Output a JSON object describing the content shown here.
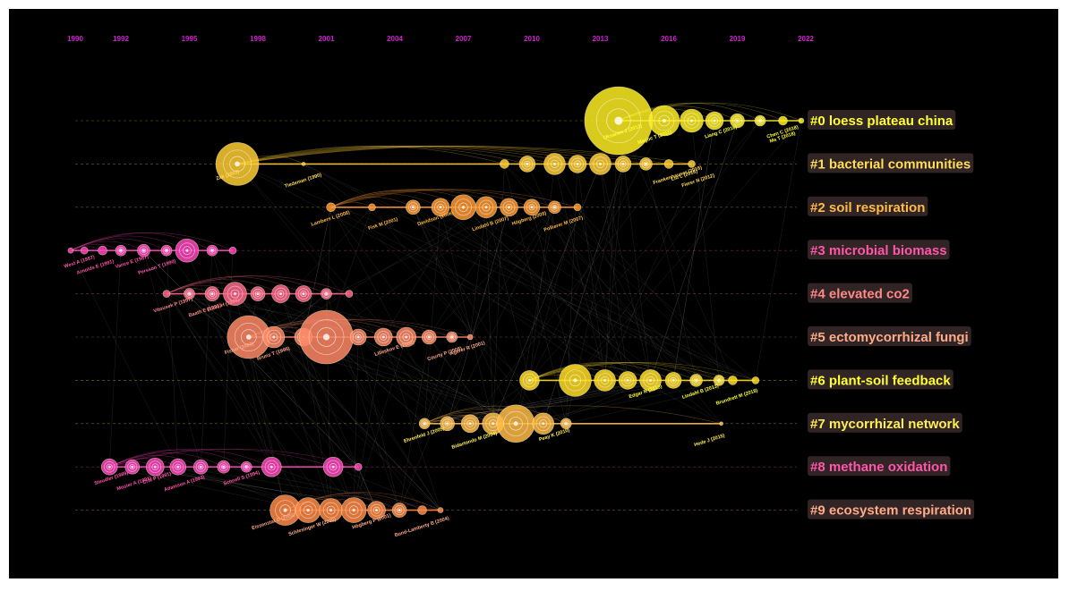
{
  "timeline": {
    "years": [
      {
        "label": "1990",
        "year": 1990
      },
      {
        "label": "1992",
        "year": 1992
      },
      {
        "label": "1995",
        "year": 1995
      },
      {
        "label": "1998",
        "year": 1998
      },
      {
        "label": "2001",
        "year": 2001
      },
      {
        "label": "2004",
        "year": 2004
      },
      {
        "label": "2007",
        "year": 2007
      },
      {
        "label": "2010",
        "year": 2010
      },
      {
        "label": "2013",
        "year": 2013
      },
      {
        "label": "2016",
        "year": 2016
      },
      {
        "label": "2019",
        "year": 2019
      },
      {
        "label": "2022",
        "year": 2022
      }
    ]
  },
  "clusters": [
    {
      "label": "#0 loess plateau china",
      "color": "#ffff33",
      "node_color": "#ffee22",
      "nodes": [
        {
          "year": 2013.8,
          "r": 38,
          "label": ""
        },
        {
          "year": 2015.8,
          "r": 17,
          "label": ""
        },
        {
          "year": 2017,
          "r": 13,
          "label": ""
        },
        {
          "year": 2018,
          "r": 10,
          "label": ""
        },
        {
          "year": 2019,
          "r": 8,
          "label": ""
        },
        {
          "year": 2020,
          "r": 6,
          "label": ""
        },
        {
          "year": 2021,
          "r": 5,
          "label": ""
        },
        {
          "year": 2021.8,
          "r": 3,
          "label": ""
        }
      ],
      "labels": [
        {
          "year": 2021,
          "text": "Chen C (2018)"
        },
        {
          "year": 2021,
          "text": "Ma T (2018)"
        },
        {
          "year": 2018.3,
          "text": "Liang C (2016)"
        },
        {
          "year": 2015.4,
          "text": "Magoc T (2011)"
        },
        {
          "year": 2014,
          "text": "Oksanen J (2013)"
        }
      ]
    },
    {
      "label": "#1 bacterial communities",
      "color": "#ffdd55",
      "node_color": "#ffcc33",
      "nodes": [
        {
          "year": 1997.1,
          "r": 24,
          "label": ""
        },
        {
          "year": 2000,
          "r": 2,
          "label": ""
        },
        {
          "year": 2008.8,
          "r": 5,
          "label": ""
        },
        {
          "year": 2009.8,
          "r": 9,
          "label": ""
        },
        {
          "year": 2011,
          "r": 12,
          "label": ""
        },
        {
          "year": 2012,
          "r": 10,
          "label": ""
        },
        {
          "year": 2013,
          "r": 12,
          "label": ""
        },
        {
          "year": 2014,
          "r": 9,
          "label": ""
        },
        {
          "year": 2015,
          "r": 7,
          "label": ""
        },
        {
          "year": 2016,
          "r": 5,
          "label": ""
        },
        {
          "year": 2017,
          "r": 4,
          "label": ""
        }
      ],
      "labels": [
        {
          "year": 1996.7,
          "text": "Zak (2003)"
        },
        {
          "year": 2000,
          "text": "Tiedeman (1990)"
        },
        {
          "year": 2016.7,
          "text": "Liu L (2016)"
        },
        {
          "year": 2017.3,
          "text": "Fierer N (2012)"
        },
        {
          "year": 2016.4,
          "text": "Frankenhauser (2016)"
        }
      ]
    },
    {
      "label": "#2 soil respiration",
      "color": "#ffbb44",
      "node_color": "#ff9933",
      "nodes": [
        {
          "year": 2001.2,
          "r": 5,
          "label": ""
        },
        {
          "year": 2003,
          "r": 4,
          "label": ""
        },
        {
          "year": 2004.8,
          "r": 8,
          "label": ""
        },
        {
          "year": 2006,
          "r": 10,
          "label": ""
        },
        {
          "year": 2007,
          "r": 14,
          "label": ""
        },
        {
          "year": 2008,
          "r": 12,
          "label": ""
        },
        {
          "year": 2009,
          "r": 10,
          "label": ""
        },
        {
          "year": 2010,
          "r": 9,
          "label": ""
        },
        {
          "year": 2011,
          "r": 7,
          "label": ""
        },
        {
          "year": 2012,
          "r": 4,
          "label": ""
        }
      ],
      "labels": [
        {
          "year": 2001.2,
          "text": "Lambers L (2008)"
        },
        {
          "year": 2003.5,
          "text": "Fisk M (2001)"
        },
        {
          "year": 2005.8,
          "text": "Davidson (2006)"
        },
        {
          "year": 2008.2,
          "text": "Lindahl B (2007)"
        },
        {
          "year": 2009.9,
          "text": "Högberg (2008)"
        },
        {
          "year": 2011.4,
          "text": "Pollierer M (2007)"
        }
      ]
    },
    {
      "label": "#3 microbial biomass",
      "color": "#ff55aa",
      "node_color": "#ff44bb",
      "nodes": [
        {
          "year": 1989.8,
          "r": 3,
          "label": ""
        },
        {
          "year": 1990.4,
          "r": 4,
          "label": ""
        },
        {
          "year": 1991.2,
          "r": 5,
          "label": ""
        },
        {
          "year": 1992,
          "r": 6,
          "label": ""
        },
        {
          "year": 1993,
          "r": 7,
          "label": ""
        },
        {
          "year": 1994,
          "r": 6,
          "label": ""
        },
        {
          "year": 1994.9,
          "r": 13,
          "label": ""
        },
        {
          "year": 1996,
          "r": 6,
          "label": ""
        },
        {
          "year": 1996.9,
          "r": 4,
          "label": ""
        }
      ],
      "labels": [
        {
          "year": 1990.2,
          "text": "West A (1987)"
        },
        {
          "year": 1990.9,
          "text": "Arnolds E (1991)"
        },
        {
          "year": 1992.5,
          "text": "Vance E (1987)"
        },
        {
          "year": 1993.6,
          "text": "Persson T (1990)"
        }
      ]
    },
    {
      "label": "#4 elevated co2",
      "color": "#ff8888",
      "node_color": "#ff6688",
      "nodes": [
        {
          "year": 1994,
          "r": 4,
          "label": ""
        },
        {
          "year": 1995,
          "r": 6,
          "label": ""
        },
        {
          "year": 1996,
          "r": 8,
          "label": ""
        },
        {
          "year": 1997,
          "r": 13,
          "label": ""
        },
        {
          "year": 1998,
          "r": 8,
          "label": ""
        },
        {
          "year": 1999,
          "r": 10,
          "label": ""
        },
        {
          "year": 2000,
          "r": 9,
          "label": ""
        },
        {
          "year": 2001,
          "r": 6,
          "label": ""
        },
        {
          "year": 2002,
          "r": 4,
          "label": ""
        }
      ],
      "labels": [
        {
          "year": 1994.3,
          "text": "Vitousek P (1997)"
        },
        {
          "year": 1995.7,
          "text": "Baath E (1995)"
        },
        {
          "year": 1996.5,
          "text": "Fritze H (1998)"
        }
      ]
    },
    {
      "label": "#5 ectomycorrhizal fungi",
      "color": "#ffaa88",
      "node_color": "#ff8866",
      "nodes": [
        {
          "year": 1997.6,
          "r": 24,
          "label": ""
        },
        {
          "year": 1998.7,
          "r": 12,
          "label": ""
        },
        {
          "year": 2000,
          "r": 10,
          "label": ""
        },
        {
          "year": 2001,
          "r": 30,
          "label": ""
        },
        {
          "year": 2002.4,
          "r": 9,
          "label": ""
        },
        {
          "year": 2003.5,
          "r": 10,
          "label": ""
        },
        {
          "year": 2004.5,
          "r": 11,
          "label": ""
        },
        {
          "year": 2005.5,
          "r": 8,
          "label": ""
        },
        {
          "year": 2006.5,
          "r": 6,
          "label": ""
        },
        {
          "year": 2007.3,
          "r": 3,
          "label": ""
        }
      ],
      "labels": [
        {
          "year": 1997.2,
          "text": "Fisher (2000)"
        },
        {
          "year": 1998.7,
          "text": "Bruns T (1995)"
        },
        {
          "year": 2004,
          "text": "Lilleskov E (2002)"
        },
        {
          "year": 2006.2,
          "text": "Courty P (2008)"
        },
        {
          "year": 2007.2,
          "text": "Agerer R (2001)"
        }
      ]
    },
    {
      "label": "#6 plant-soil feedback",
      "color": "#ffff33",
      "node_color": "#ffdd22",
      "nodes": [
        {
          "year": 2009.9,
          "r": 11,
          "label": ""
        },
        {
          "year": 2011.9,
          "r": 18,
          "label": ""
        },
        {
          "year": 2013.2,
          "r": 12,
          "label": ""
        },
        {
          "year": 2014.2,
          "r": 10,
          "label": ""
        },
        {
          "year": 2015.2,
          "r": 12,
          "label": ""
        },
        {
          "year": 2016.2,
          "r": 9,
          "label": ""
        },
        {
          "year": 2017.2,
          "r": 7,
          "label": ""
        },
        {
          "year": 2018.2,
          "r": 6,
          "label": ""
        },
        {
          "year": 2018.8,
          "r": 5,
          "label": ""
        },
        {
          "year": 2019.8,
          "r": 4,
          "label": ""
        }
      ],
      "labels": [
        {
          "year": 2015,
          "text": "Edgar R (2013)"
        },
        {
          "year": 2019,
          "text": "Brundrett M (2018)"
        },
        {
          "year": 2017.4,
          "text": "Lindahl B (2013)"
        }
      ]
    },
    {
      "label": "#7 mycorrhizal network",
      "color": "#ffee55",
      "node_color": "#ffbb44",
      "nodes": [
        {
          "year": 2005.3,
          "r": 6,
          "label": ""
        },
        {
          "year": 2006.3,
          "r": 8,
          "label": ""
        },
        {
          "year": 2007.3,
          "r": 10,
          "label": ""
        },
        {
          "year": 2008.3,
          "r": 12,
          "label": ""
        },
        {
          "year": 2009.3,
          "r": 21,
          "label": ""
        },
        {
          "year": 2010.5,
          "r": 12,
          "label": ""
        },
        {
          "year": 2011.5,
          "r": 6,
          "label": ""
        },
        {
          "year": 2018.3,
          "r": 2,
          "label": ""
        }
      ],
      "labels": [
        {
          "year": 2005.3,
          "text": "Ehrenfeld J (2005)"
        },
        {
          "year": 2007.5,
          "text": "Bidartondo M (2004)"
        },
        {
          "year": 2011,
          "text": "Peay K (2010)"
        },
        {
          "year": 2017.8,
          "text": "Hede J (2015)"
        }
      ]
    },
    {
      "label": "#8 methane oxidation",
      "color": "#ff55aa",
      "node_color": "#ff44bb",
      "nodes": [
        {
          "year": 1991.5,
          "r": 9,
          "label": ""
        },
        {
          "year": 1992.5,
          "r": 8,
          "label": ""
        },
        {
          "year": 1993.5,
          "r": 10,
          "label": ""
        },
        {
          "year": 1994.5,
          "r": 9,
          "label": ""
        },
        {
          "year": 1995.5,
          "r": 8,
          "label": ""
        },
        {
          "year": 1996.5,
          "r": 7,
          "label": ""
        },
        {
          "year": 1997.5,
          "r": 6,
          "label": ""
        },
        {
          "year": 1998.6,
          "r": 11,
          "label": ""
        },
        {
          "year": 2001.3,
          "r": 11,
          "label": ""
        },
        {
          "year": 2002.4,
          "r": 4,
          "label": ""
        }
      ],
      "labels": [
        {
          "year": 1991.6,
          "text": "Steudler (1989)"
        },
        {
          "year": 1992.6,
          "text": "Mosier A (1991)"
        },
        {
          "year": 1993.6,
          "text": "Crill P (1991)"
        },
        {
          "year": 1994.8,
          "text": "Adamsen A (1993)"
        },
        {
          "year": 1997.3,
          "text": "Schnell S (1994)"
        }
      ]
    },
    {
      "label": "#9 ecosystem respiration",
      "color": "#ffaa88",
      "node_color": "#ff8844",
      "nodes": [
        {
          "year": 1999.2,
          "r": 17,
          "label": ""
        },
        {
          "year": 2000.2,
          "r": 14,
          "label": ""
        },
        {
          "year": 2001.2,
          "r": 13,
          "label": ""
        },
        {
          "year": 2002.2,
          "r": 14,
          "label": ""
        },
        {
          "year": 2003.2,
          "r": 10,
          "label": ""
        },
        {
          "year": 2004.2,
          "r": 8,
          "label": ""
        },
        {
          "year": 2005.2,
          "r": 5,
          "label": ""
        },
        {
          "year": 2006,
          "r": 3,
          "label": ""
        }
      ],
      "labels": [
        {
          "year": 1998.7,
          "text": "Eissenstat D (2000)"
        },
        {
          "year": 2000.4,
          "text": "Schlesinger W (2000)"
        },
        {
          "year": 2003,
          "text": "Högberg P (2001)"
        },
        {
          "year": 2005.2,
          "text": "Bond-Lamberty B (2004)"
        }
      ]
    }
  ]
}
